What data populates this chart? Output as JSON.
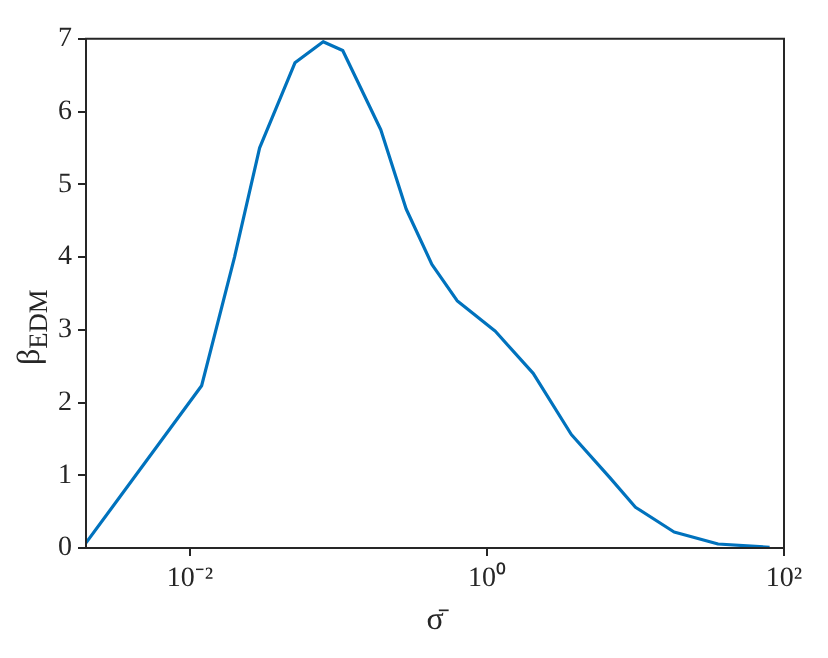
{
  "chart_data": {
    "type": "line",
    "xlabel": "σ̄",
    "ylabel": "β$_{EDM}$",
    "log": "x",
    "grid": false,
    "legend": false,
    "marker": "none",
    "line_style": "solid",
    "xlim": [
      0.002,
      100
    ],
    "xticks": [
      {
        "value": 0.01,
        "label": "10⁻²"
      },
      {
        "value": 1,
        "label": "10⁰"
      },
      {
        "value": 100,
        "label": "10²"
      }
    ],
    "ylim": [
      0,
      7
    ],
    "yticks": [
      0,
      1,
      2,
      3,
      4,
      5,
      6,
      7
    ],
    "series": [
      {
        "color": "#0072bd",
        "x": [
          0.002,
          0.012,
          0.02,
          0.0295,
          0.051,
          0.079,
          0.107,
          0.193,
          0.286,
          0.426,
          0.63,
          1.14,
          2.05,
          3.7,
          6.7,
          10,
          18.2,
          36,
          80
        ],
        "values": [
          0.07,
          2.23,
          4.0,
          5.5,
          6.67,
          6.96,
          6.84,
          5.75,
          4.66,
          3.9,
          3.4,
          2.98,
          2.4,
          1.56,
          0.97,
          0.56,
          0.22,
          0.055,
          0.01
        ]
      }
    ]
  }
}
